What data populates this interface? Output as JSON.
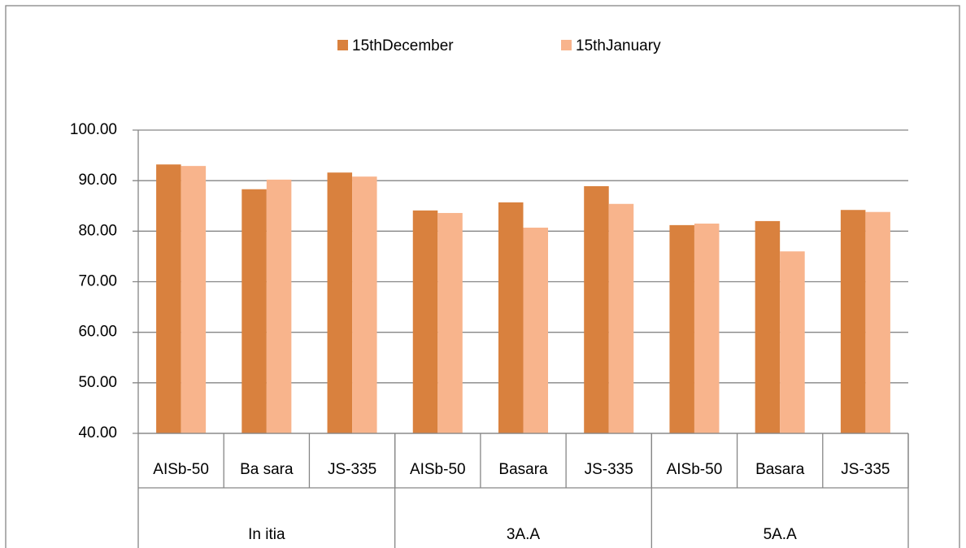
{
  "chart_data": {
    "type": "bar",
    "groups": [
      {
        "name": "In itia",
        "categories": [
          "AISb-50",
          "Ba sara",
          "JS-335"
        ]
      },
      {
        "name": "3A.A",
        "categories": [
          "AISb-50",
          "Basara",
          "JS-335"
        ]
      },
      {
        "name": "5A.A",
        "categories": [
          "AISb-50",
          "Basara",
          "JS-335"
        ]
      }
    ],
    "series": [
      {
        "name": "15thDecember",
        "color": "#d9813e",
        "values": [
          93.2,
          88.3,
          91.6,
          84.1,
          85.7,
          88.9,
          81.2,
          82.0,
          84.2
        ]
      },
      {
        "name": "15thJanuary",
        "color": "#f8b48c",
        "values": [
          92.9,
          90.2,
          90.8,
          83.6,
          80.7,
          85.4,
          81.5,
          76.0,
          83.8
        ]
      }
    ],
    "ylim": [
      40,
      100
    ],
    "yticks": [
      {
        "value": 40,
        "label": "40.00"
      },
      {
        "value": 50,
        "label": "50.00"
      },
      {
        "value": 60,
        "label": "60.00"
      },
      {
        "value": 70,
        "label": "70.00"
      },
      {
        "value": 80,
        "label": "80.00"
      },
      {
        "value": 90,
        "label": "90.00"
      },
      {
        "value": 100,
        "label": "100.00"
      }
    ],
    "grid": true,
    "legend": "top"
  }
}
